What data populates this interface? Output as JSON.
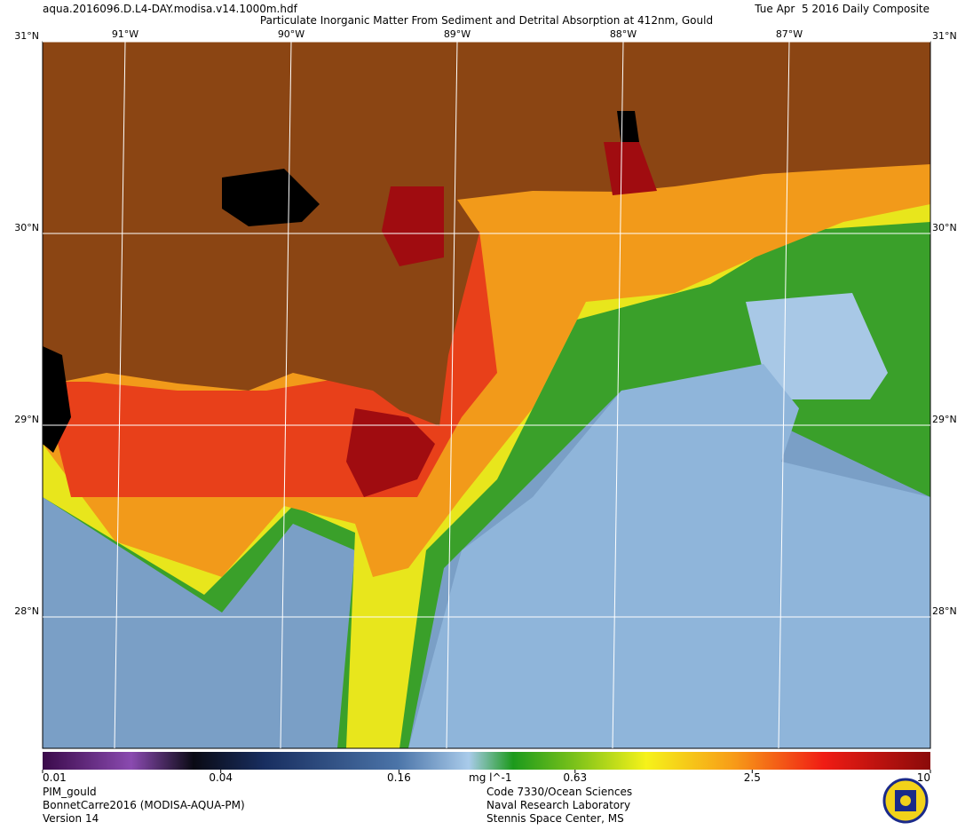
{
  "header": {
    "file": "aqua.2016096.D.L4-DAY.modisa.v14.1000m.hdf",
    "title": "Particulate Inorganic Matter From Sediment and Detrital Absorption at 412nm, Gould",
    "date": "Tue Apr  5 2016 Daily Composite"
  },
  "map": {
    "latitudes": [
      {
        "value": 31,
        "label": "31°N"
      },
      {
        "value": 30,
        "label": "30°N"
      },
      {
        "value": 29,
        "label": "29°N"
      },
      {
        "value": 28,
        "label": "28°N"
      }
    ],
    "longitudes": [
      {
        "value": -91,
        "label": "91°W"
      },
      {
        "value": -90,
        "label": "90°W"
      },
      {
        "value": -89,
        "label": "89°W"
      },
      {
        "value": -88,
        "label": "88°W"
      },
      {
        "value": -87,
        "label": "87°W"
      }
    ]
  },
  "colorbar": {
    "unit": "mg l^-1",
    "scale": "log",
    "range": [
      0.01,
      10
    ],
    "ticks": [
      0.01,
      0.04,
      0.16,
      0.63,
      2.5,
      10
    ]
  },
  "footer": {
    "left": [
      "PIM_gould",
      "BonnetCarre2016 (MODISA-AQUA-PM)",
      "Version 14"
    ],
    "right": [
      "Code 7330/Ocean Sciences",
      "Naval Research Laboratory",
      "Stennis Space Center, MS"
    ]
  }
}
